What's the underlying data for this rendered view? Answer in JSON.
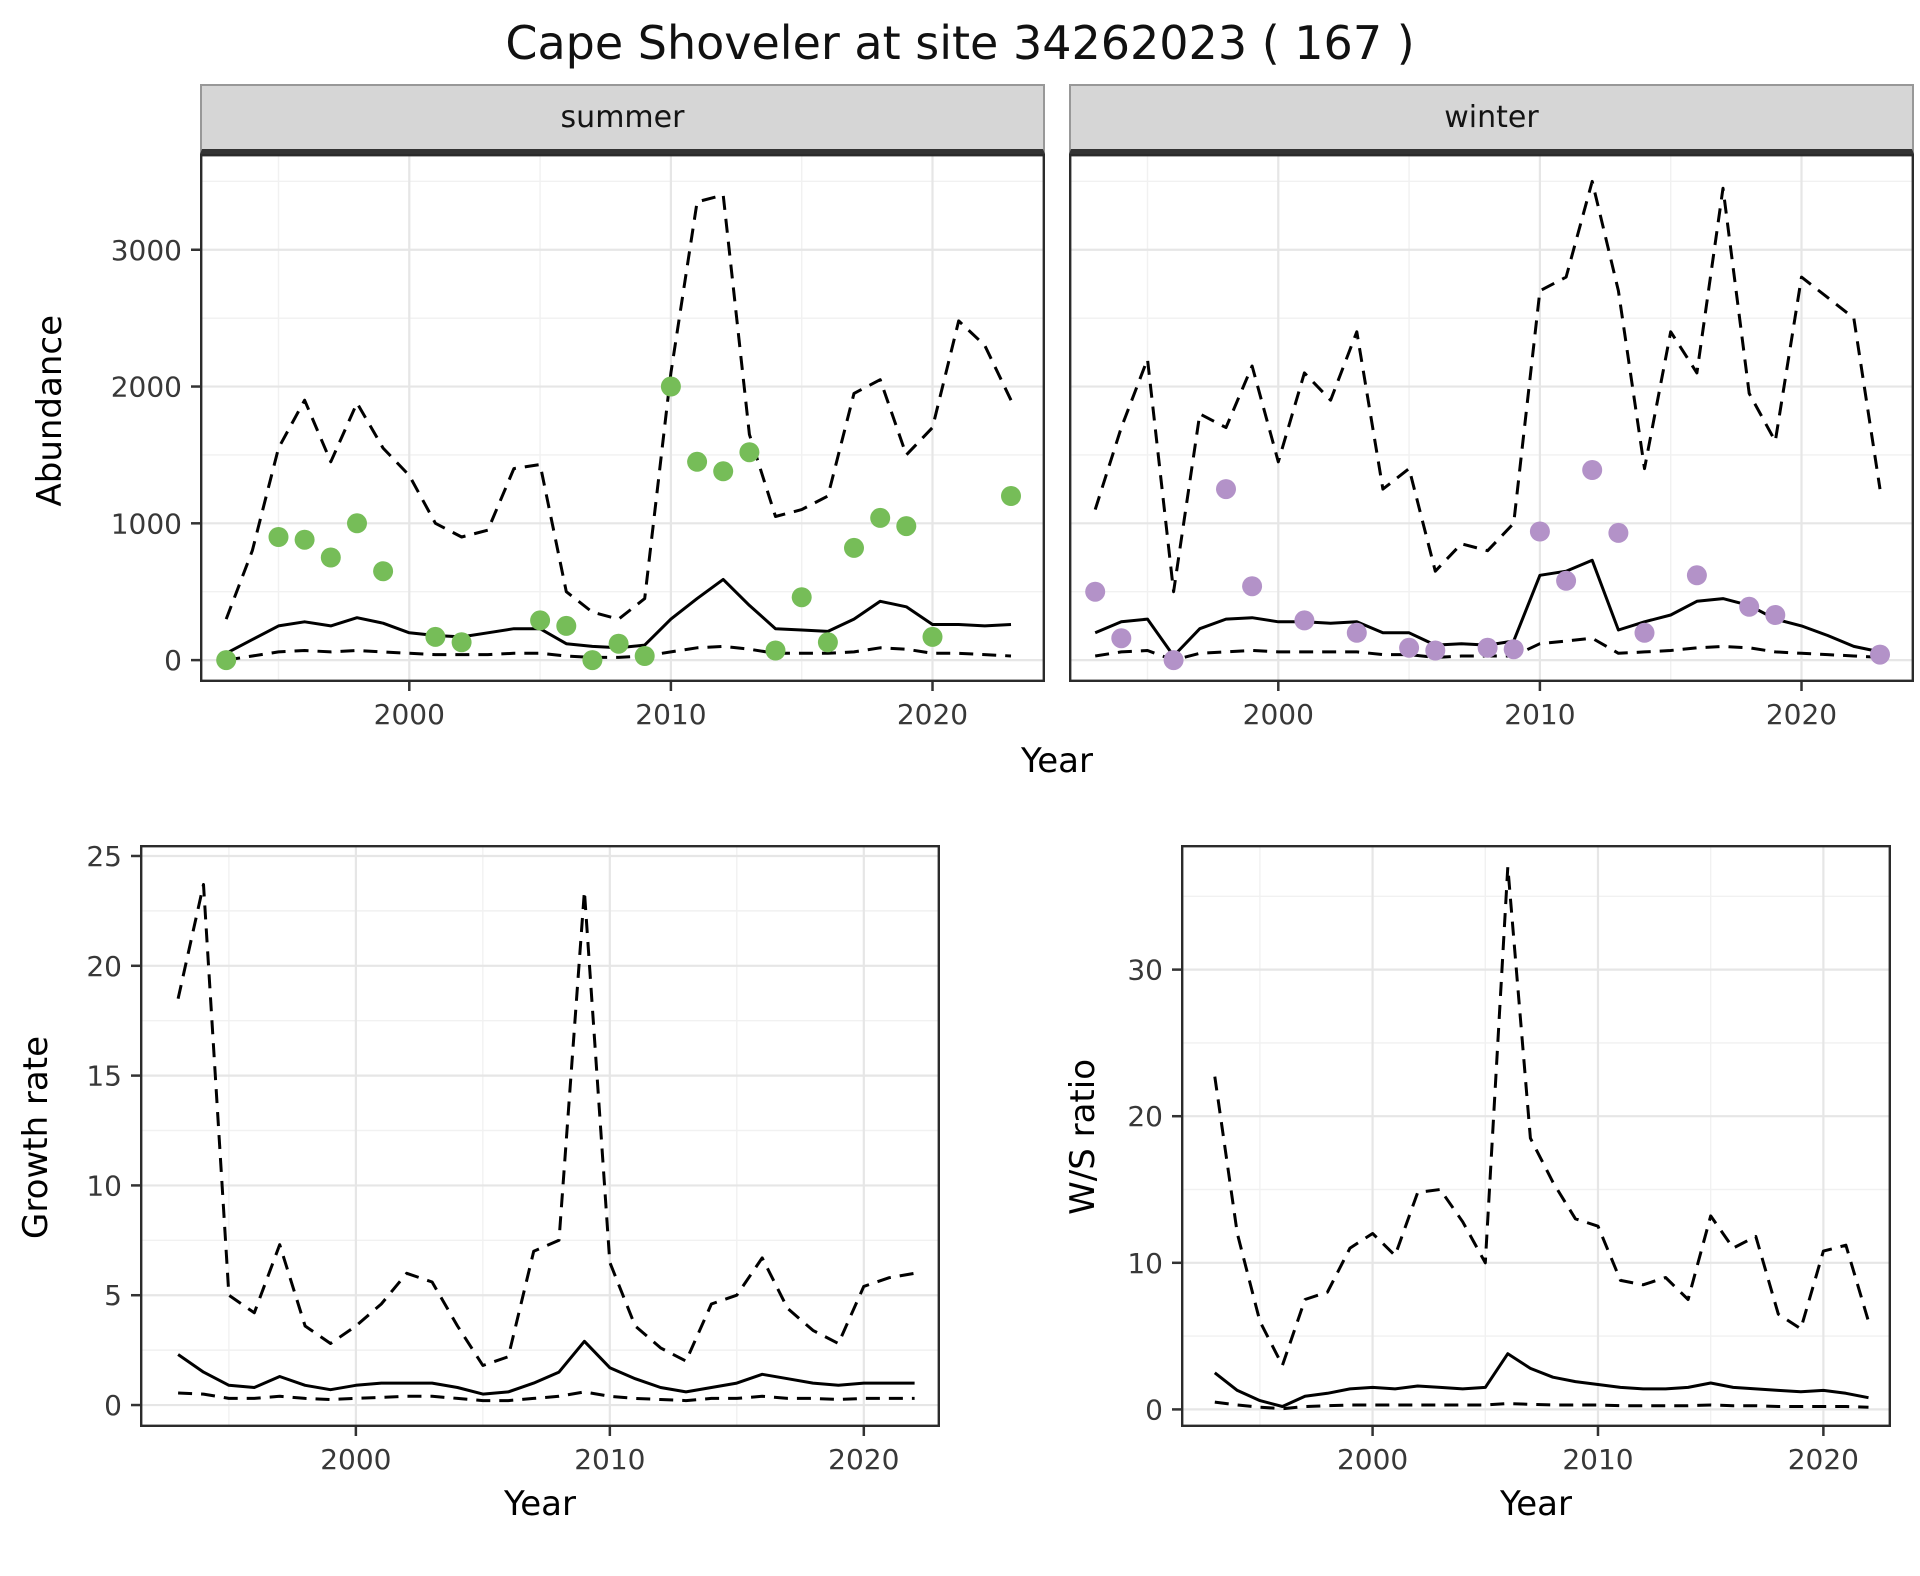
{
  "title": "Cape Shoveler at site 34262023 ( 167 )",
  "colors": {
    "summer_points": "#76bd58",
    "winter_points": "#b392c8",
    "line": "#000000",
    "strip_bg": "#d6d6d6",
    "grid_major": "#e6e6e6",
    "grid_minor": "#f1f1f1",
    "panel_border": "#2b2b2b"
  },
  "chart_data": [
    {
      "type": "line",
      "panel": "abundance-summer",
      "title": "summer",
      "xlabel": "Year",
      "ylabel": "Abundance",
      "xlim": [
        1992,
        2024.3
      ],
      "ylim": [
        -160,
        3700
      ],
      "xticks": [
        2000,
        2010,
        2020
      ],
      "yticks": [
        0,
        1000,
        2000,
        3000
      ],
      "grid": "major and minor",
      "legend": "none",
      "x": [
        1993,
        1994,
        1995,
        1996,
        1997,
        1998,
        1999,
        2000,
        2001,
        2002,
        2003,
        2004,
        2005,
        2006,
        2007,
        2008,
        2009,
        2010,
        2011,
        2012,
        2013,
        2014,
        2015,
        2016,
        2017,
        2018,
        2019,
        2020,
        2021,
        2022,
        2023
      ],
      "series": [
        {
          "name": "upper-ci",
          "style": "dashed",
          "color": "#000000",
          "values": [
            300,
            800,
            1550,
            1900,
            1450,
            1880,
            1550,
            1350,
            1000,
            900,
            950,
            1400,
            1430,
            500,
            350,
            300,
            450,
            2100,
            3350,
            3400,
            1650,
            1050,
            1100,
            1200,
            1950,
            2050,
            1500,
            1700,
            2480,
            2300,
            1900
          ]
        },
        {
          "name": "median-fit",
          "style": "solid",
          "color": "#000000",
          "values": [
            50,
            150,
            250,
            280,
            250,
            310,
            270,
            200,
            180,
            170,
            200,
            230,
            230,
            120,
            100,
            90,
            110,
            300,
            450,
            590,
            400,
            230,
            220,
            210,
            300,
            430,
            390,
            260,
            260,
            250,
            260
          ]
        },
        {
          "name": "lower-ci",
          "style": "dashed",
          "color": "#000000",
          "values": [
            0,
            30,
            60,
            70,
            60,
            70,
            60,
            50,
            40,
            40,
            40,
            50,
            50,
            30,
            20,
            20,
            30,
            60,
            90,
            100,
            80,
            50,
            50,
            50,
            60,
            90,
            80,
            50,
            50,
            40,
            30
          ]
        },
        {
          "name": "observed-counts",
          "style": "points",
          "color": "#76bd58",
          "x": [
            1993,
            1995,
            1996,
            1997,
            1998,
            1999,
            2001,
            2002,
            2005,
            2006,
            2007,
            2008,
            2009,
            2010,
            2011,
            2012,
            2013,
            2014,
            2015,
            2016,
            2017,
            2018,
            2019,
            2020,
            2023
          ],
          "values": [
            0,
            900,
            880,
            750,
            1000,
            650,
            170,
            130,
            290,
            250,
            0,
            120,
            30,
            2000,
            1450,
            1380,
            1520,
            70,
            460,
            130,
            820,
            1040,
            980,
            170,
            1200
          ]
        }
      ]
    },
    {
      "type": "line",
      "panel": "abundance-winter",
      "title": "winter",
      "xlabel": "Year",
      "ylabel": "Abundance",
      "xlim": [
        1992,
        2024.3
      ],
      "ylim": [
        -160,
        3700
      ],
      "xticks": [
        2000,
        2010,
        2020
      ],
      "yticks": [
        0,
        1000,
        2000,
        3000
      ],
      "grid": "major and minor",
      "legend": "none",
      "x": [
        1993,
        1994,
        1995,
        1996,
        1997,
        1998,
        1999,
        2000,
        2001,
        2002,
        2003,
        2004,
        2005,
        2006,
        2007,
        2008,
        2009,
        2010,
        2011,
        2012,
        2013,
        2014,
        2015,
        2016,
        2017,
        2018,
        2019,
        2020,
        2021,
        2022,
        2023
      ],
      "series": [
        {
          "name": "upper-ci",
          "style": "dashed",
          "color": "#000000",
          "values": [
            1100,
            1700,
            2200,
            500,
            1800,
            1700,
            2150,
            1450,
            2100,
            1900,
            2400,
            1250,
            1400,
            650,
            850,
            800,
            1000,
            2700,
            2800,
            3500,
            2700,
            1400,
            2400,
            2100,
            3450,
            1950,
            1600,
            2800,
            2650,
            2500,
            1250
          ]
        },
        {
          "name": "median-fit",
          "style": "solid",
          "color": "#000000",
          "values": [
            200,
            280,
            300,
            30,
            230,
            300,
            310,
            280,
            280,
            270,
            280,
            200,
            200,
            110,
            120,
            110,
            140,
            620,
            650,
            730,
            220,
            280,
            330,
            430,
            450,
            400,
            300,
            250,
            180,
            100,
            60
          ]
        },
        {
          "name": "lower-ci",
          "style": "dashed",
          "color": "#000000",
          "values": [
            30,
            60,
            70,
            0,
            50,
            60,
            70,
            60,
            60,
            60,
            60,
            40,
            40,
            20,
            30,
            30,
            30,
            120,
            140,
            160,
            50,
            60,
            70,
            90,
            100,
            90,
            60,
            50,
            40,
            30,
            20
          ]
        },
        {
          "name": "observed-counts",
          "style": "points",
          "color": "#b392c8",
          "x": [
            1993,
            1994,
            1996,
            1998,
            1999,
            2001,
            2003,
            2005,
            2006,
            2008,
            2009,
            2010,
            2011,
            2012,
            2013,
            2014,
            2016,
            2018,
            2019,
            2023
          ],
          "values": [
            500,
            160,
            0,
            1250,
            540,
            290,
            200,
            90,
            70,
            90,
            80,
            940,
            580,
            1390,
            930,
            200,
            620,
            390,
            330,
            40
          ]
        }
      ]
    },
    {
      "type": "line",
      "panel": "growth-rate",
      "title": "Growth rate",
      "xlabel": "Year",
      "ylabel": "Growth rate",
      "xlim": [
        1991.5,
        2023
      ],
      "ylim": [
        -1,
        25.5
      ],
      "xticks": [
        2000,
        2010,
        2020
      ],
      "yticks": [
        0,
        5,
        10,
        15,
        20,
        25
      ],
      "grid": "major and minor",
      "legend": "none",
      "x": [
        1993,
        1994,
        1995,
        1996,
        1997,
        1998,
        1999,
        2000,
        2001,
        2002,
        2003,
        2004,
        2005,
        2006,
        2007,
        2008,
        2009,
        2010,
        2011,
        2012,
        2013,
        2014,
        2015,
        2016,
        2017,
        2018,
        2019,
        2020,
        2021,
        2022
      ],
      "series": [
        {
          "name": "upper-ci",
          "style": "dashed",
          "color": "#000000",
          "values": [
            18.5,
            23.7,
            5.0,
            4.2,
            7.3,
            3.6,
            2.8,
            3.6,
            4.6,
            6.0,
            5.6,
            3.6,
            1.8,
            2.2,
            7.0,
            7.5,
            23.4,
            6.5,
            3.6,
            2.6,
            2.0,
            4.6,
            5.0,
            6.7,
            4.4,
            3.4,
            2.8,
            5.4,
            5.8,
            6.0
          ]
        },
        {
          "name": "median-fit",
          "style": "solid",
          "color": "#000000",
          "values": [
            2.3,
            1.5,
            0.9,
            0.8,
            1.3,
            0.9,
            0.7,
            0.9,
            1.0,
            1.0,
            1.0,
            0.8,
            0.5,
            0.6,
            1.0,
            1.5,
            2.9,
            1.7,
            1.2,
            0.8,
            0.6,
            0.8,
            1.0,
            1.4,
            1.2,
            1.0,
            0.9,
            1.0,
            1.0,
            1.0
          ]
        },
        {
          "name": "lower-ci",
          "style": "dashed",
          "color": "#000000",
          "values": [
            0.55,
            0.5,
            0.3,
            0.3,
            0.4,
            0.3,
            0.25,
            0.3,
            0.35,
            0.4,
            0.4,
            0.3,
            0.2,
            0.2,
            0.3,
            0.4,
            0.6,
            0.4,
            0.3,
            0.25,
            0.2,
            0.3,
            0.3,
            0.4,
            0.3,
            0.3,
            0.25,
            0.3,
            0.3,
            0.3
          ]
        }
      ]
    },
    {
      "type": "line",
      "panel": "ws-ratio",
      "title": "W/S ratio",
      "xlabel": "Year",
      "ylabel": "W/S ratio",
      "xlim": [
        1991.5,
        2023
      ],
      "ylim": [
        -1.2,
        38.5
      ],
      "xticks": [
        2000,
        2010,
        2020
      ],
      "yticks": [
        0,
        10,
        20,
        30
      ],
      "grid": "major and minor",
      "legend": "none",
      "x": [
        1993,
        1994,
        1995,
        1996,
        1997,
        1998,
        1999,
        2000,
        2001,
        2002,
        2003,
        2004,
        2005,
        2006,
        2007,
        2008,
        2009,
        2010,
        2011,
        2012,
        2013,
        2014,
        2015,
        2016,
        2017,
        2018,
        2019,
        2020,
        2021,
        2022
      ],
      "series": [
        {
          "name": "upper-ci",
          "style": "dashed",
          "color": "#000000",
          "values": [
            22.7,
            12.0,
            6.0,
            3.0,
            7.5,
            8.0,
            11.0,
            12.0,
            10.5,
            14.8,
            15.0,
            12.8,
            10.0,
            37.0,
            18.5,
            15.5,
            13.0,
            12.5,
            8.8,
            8.5,
            9.0,
            7.5,
            13.2,
            11.0,
            11.8,
            6.5,
            5.5,
            10.8,
            11.2,
            6.0
          ]
        },
        {
          "name": "median-fit",
          "style": "solid",
          "color": "#000000",
          "values": [
            2.5,
            1.3,
            0.6,
            0.2,
            0.9,
            1.1,
            1.4,
            1.5,
            1.4,
            1.6,
            1.5,
            1.4,
            1.5,
            3.8,
            2.8,
            2.2,
            1.9,
            1.7,
            1.5,
            1.4,
            1.4,
            1.5,
            1.8,
            1.5,
            1.4,
            1.3,
            1.2,
            1.3,
            1.1,
            0.8
          ]
        },
        {
          "name": "lower-ci",
          "style": "dashed",
          "color": "#000000",
          "values": [
            0.5,
            0.3,
            0.15,
            0.05,
            0.2,
            0.25,
            0.3,
            0.3,
            0.3,
            0.3,
            0.3,
            0.3,
            0.3,
            0.4,
            0.35,
            0.3,
            0.3,
            0.3,
            0.25,
            0.25,
            0.25,
            0.25,
            0.3,
            0.25,
            0.25,
            0.2,
            0.2,
            0.2,
            0.2,
            0.15
          ]
        }
      ]
    }
  ]
}
